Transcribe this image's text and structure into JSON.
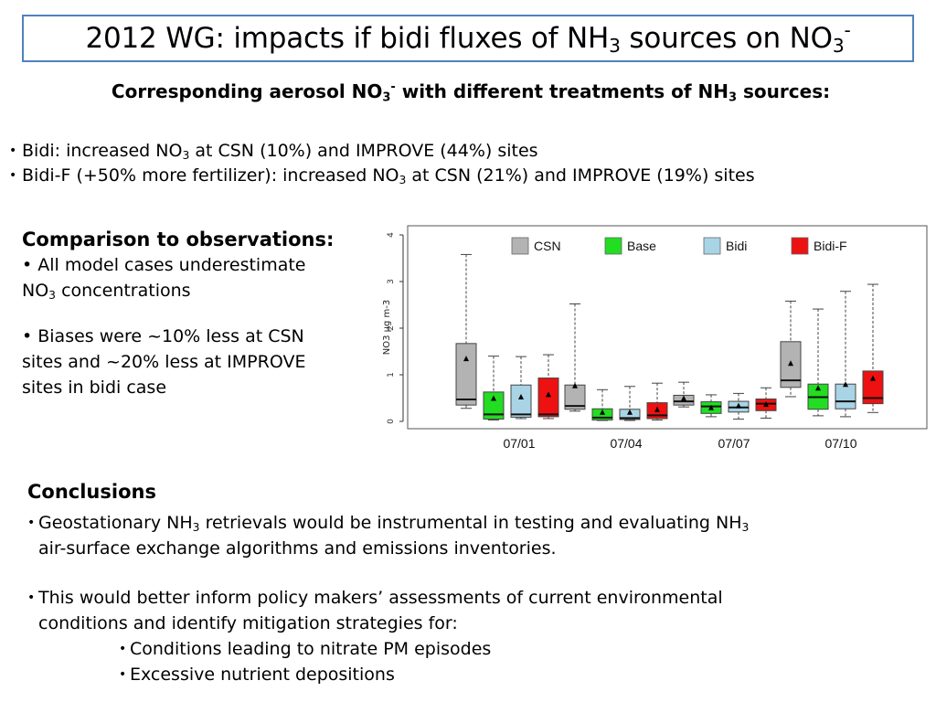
{
  "slide": {
    "title_pre": "2012 WG: impacts if bidi fluxes of NH",
    "title_sub": "3",
    "title_mid": " sources on NO",
    "title_sub2": "3",
    "title_sup": "-",
    "subtitle_pre": "Corresponding aerosol NO",
    "subtitle_sub": "3",
    "subtitle_sup": "-",
    "subtitle_mid": " with different treatments of NH",
    "subtitle_sub2": "3",
    "subtitle_post": " sources:",
    "bullets": [
      {
        "pre": "Bidi: increased NO",
        "sub": "3",
        "post": " at CSN (10%) and IMPROVE (44%) sites"
      },
      {
        "pre": "Bidi-F (+50% more fertilizer): increased NO",
        "sub": "3",
        "post": " at CSN (21%) and IMPROVE (19%) sites"
      }
    ],
    "comparison": {
      "heading": "Comparison to observations:",
      "b1_pre": "• All model cases underestimate",
      "b1_line2": "NO",
      "b1_sub": "3",
      "b1_post": " concentrations",
      "b2_l1": "• Biases were ~10% less at CSN",
      "b2_l2": "sites and ~20% less at IMPROVE",
      "b2_l3": "sites in bidi case"
    },
    "conclusions": {
      "heading": "Conclusions",
      "c1_pre": "Geostationary NH",
      "c1_sub": "3",
      "c1_mid": " retrievals would be instrumental in testing and evaluating NH",
      "c1_sub2": "3",
      "c1_line2": "air-surface exchange algorithms and emissions inventories.",
      "c2_l1": "This would better inform policy makers’ assessments of current environmental",
      "c2_l2": "conditions and identify mitigation strategies for:",
      "sub_items": [
        "Conditions leading to nitrate PM episodes",
        "Excessive nutrient depositions"
      ]
    }
  },
  "chart_data": {
    "type": "boxplot",
    "ylabel": "NO3 µg m-3",
    "ylim": [
      0,
      4
    ],
    "yticks": [
      0,
      1,
      2,
      3,
      4
    ],
    "x_tick_labels": [
      "07/01",
      "07/04",
      "07/07",
      "07/10"
    ],
    "legend": [
      {
        "name": "CSN",
        "color": "#b3b3b3"
      },
      {
        "name": "Base",
        "color": "#22dd22"
      },
      {
        "name": "Bidi",
        "color": "#a8d4e6"
      },
      {
        "name": "Bidi-F",
        "color": "#ee1111"
      }
    ],
    "legend_position": "top",
    "groups": [
      {
        "boxes": [
          {
            "series": "CSN",
            "min": 0.28,
            "q1": 0.35,
            "median": 0.47,
            "q3": 1.67,
            "max": 3.58,
            "mean": 1.35
          },
          {
            "series": "Base",
            "min": 0.03,
            "q1": 0.05,
            "median": 0.15,
            "q3": 0.63,
            "max": 1.4,
            "mean": 0.5
          },
          {
            "series": "Bidi",
            "min": 0.06,
            "q1": 0.09,
            "median": 0.15,
            "q3": 0.78,
            "max": 1.39,
            "mean": 0.53
          },
          {
            "series": "Bidi-F",
            "min": 0.06,
            "q1": 0.1,
            "median": 0.15,
            "q3": 0.93,
            "max": 1.43,
            "mean": 0.58
          }
        ]
      },
      {
        "boxes": [
          {
            "series": "CSN",
            "min": 0.22,
            "q1": 0.26,
            "median": 0.33,
            "q3": 0.78,
            "max": 2.52,
            "mean": 0.77
          },
          {
            "series": "Base",
            "min": 0.02,
            "q1": 0.03,
            "median": 0.08,
            "q3": 0.27,
            "max": 0.68,
            "mean": 0.2
          },
          {
            "series": "Bidi",
            "min": 0.02,
            "q1": 0.04,
            "median": 0.07,
            "q3": 0.26,
            "max": 0.75,
            "mean": 0.2
          },
          {
            "series": "Bidi-F",
            "min": 0.03,
            "q1": 0.06,
            "median": 0.13,
            "q3": 0.4,
            "max": 0.82,
            "mean": 0.26
          }
        ]
      },
      {
        "boxes": [
          {
            "series": "CSN",
            "min": 0.31,
            "q1": 0.35,
            "median": 0.43,
            "q3": 0.56,
            "max": 0.84,
            "mean": 0.5
          },
          {
            "series": "Base",
            "min": 0.1,
            "q1": 0.17,
            "median": 0.32,
            "q3": 0.42,
            "max": 0.57,
            "mean": 0.3
          },
          {
            "series": "Bidi",
            "min": 0.05,
            "q1": 0.2,
            "median": 0.3,
            "q3": 0.43,
            "max": 0.6,
            "mean": 0.34
          },
          {
            "series": "Bidi-F",
            "min": 0.07,
            "q1": 0.23,
            "median": 0.38,
            "q3": 0.48,
            "max": 0.72,
            "mean": 0.37
          }
        ]
      },
      {
        "boxes": [
          {
            "series": "CSN",
            "min": 0.53,
            "q1": 0.73,
            "median": 0.88,
            "q3": 1.71,
            "max": 2.58,
            "mean": 1.25
          },
          {
            "series": "Base",
            "min": 0.12,
            "q1": 0.26,
            "median": 0.52,
            "q3": 0.8,
            "max": 2.41,
            "mean": 0.72
          },
          {
            "series": "Bidi",
            "min": 0.1,
            "q1": 0.27,
            "median": 0.43,
            "q3": 0.8,
            "max": 2.79,
            "mean": 0.8
          },
          {
            "series": "Bidi-F",
            "min": 0.19,
            "q1": 0.38,
            "median": 0.5,
            "q3": 1.08,
            "max": 2.94,
            "mean": 0.93
          }
        ]
      }
    ]
  }
}
